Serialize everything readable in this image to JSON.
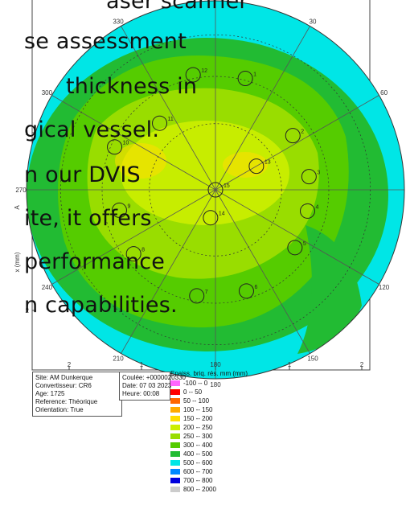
{
  "overlay_lines": [
    "aser scanner",
    "se assessment",
    "thickness in",
    "gical vessel.",
    "n our DVIS",
    "ite, it offers",
    "performance",
    "n capabilities."
  ],
  "site_box": [
    "Site: AM Dunkerque",
    "Convertisseur: CR6",
    "Age: 1725",
    "Reference: Théorique",
    "Orientation: True"
  ],
  "coulee_box": [
    "Coulée: +0000020330",
    "Date: 07 03 2023",
    "Heure: 00:08"
  ],
  "chart_data": {
    "type": "heatmap",
    "ylabel": "A",
    "ylabel_partial": "x (mm)",
    "angle_labels": [
      {
        "text": "330",
        "angle": 330
      },
      {
        "text": "30",
        "angle": 30
      },
      {
        "text": "60",
        "angle": 60
      },
      {
        "text": "120",
        "angle": 120
      },
      {
        "text": "150",
        "angle": 150
      },
      {
        "text": "180",
        "angle": 180
      },
      {
        "text": "210",
        "angle": 210
      },
      {
        "text": "240",
        "angle": 240
      },
      {
        "text": "270",
        "angle": 270
      },
      {
        "text": "300",
        "angle": 300
      }
    ],
    "x_ticks": [
      "2",
      "1",
      "180",
      "1",
      "2"
    ],
    "y_ticks": [
      "1",
      "2"
    ],
    "markers": [
      {
        "id": "1",
        "r": 0.61,
        "angle": 15
      },
      {
        "id": "2",
        "r": 0.5,
        "angle": 55
      },
      {
        "id": "3",
        "r": 0.5,
        "angle": 82
      },
      {
        "id": "4",
        "r": 0.5,
        "angle": 103
      },
      {
        "id": "5",
        "r": 0.52,
        "angle": 126
      },
      {
        "id": "6",
        "r": 0.56,
        "angle": 163
      },
      {
        "id": "7",
        "r": 0.57,
        "angle": 190
      },
      {
        "id": "8",
        "r": 0.55,
        "angle": 232
      },
      {
        "id": "9",
        "r": 0.52,
        "angle": 258
      },
      {
        "id": "10",
        "r": 0.58,
        "angle": 293
      },
      {
        "id": "11",
        "r": 0.46,
        "angle": 320
      },
      {
        "id": "12",
        "r": 0.62,
        "angle": 349
      },
      {
        "id": "13",
        "r": 0.25,
        "angle": 60
      },
      {
        "id": "14",
        "r": 0.15,
        "angle": 190
      },
      {
        "id": "15",
        "r": 0.0,
        "angle": 0
      }
    ],
    "legend_title": "Epaiss. briq. rés. mm (mm)",
    "legend": [
      {
        "label": "-100 -- 0",
        "color": "#ff66ff"
      },
      {
        "label": "0 -- 50",
        "color": "#ff0000"
      },
      {
        "label": "50 -- 100",
        "color": "#ff6600"
      },
      {
        "label": "100 -- 150",
        "color": "#ffaa00"
      },
      {
        "label": "150 -- 200",
        "color": "#ffdd00"
      },
      {
        "label": "200 -- 250",
        "color": "#ccee00"
      },
      {
        "label": "250 -- 300",
        "color": "#99dd00"
      },
      {
        "label": "300 -- 400",
        "color": "#55cc00"
      },
      {
        "label": "400 -- 500",
        "color": "#22bb33"
      },
      {
        "label": "500 -- 600",
        "color": "#00e6e6"
      },
      {
        "label": "600 -- 700",
        "color": "#0088ff"
      },
      {
        "label": "700 -- 800",
        "color": "#0000dd"
      },
      {
        "label": "800 -- 2000",
        "color": "#cccccc"
      }
    ]
  }
}
